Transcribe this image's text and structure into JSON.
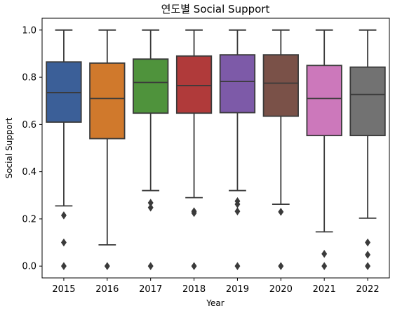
{
  "chart_data": {
    "type": "box",
    "title": "연도별 Social Support",
    "xlabel": "Year",
    "ylabel": "Social Support",
    "ylim": [
      -0.05,
      1.05
    ],
    "yticks": [
      "0.0",
      "0.2",
      "0.4",
      "0.6",
      "0.8",
      "1.0"
    ],
    "categories": [
      "2015",
      "2016",
      "2017",
      "2018",
      "2019",
      "2020",
      "2021",
      "2022"
    ],
    "colors": [
      "#3b5f98",
      "#d0792c",
      "#4f933c",
      "#b03a3a",
      "#7d5aa8",
      "#7a5148",
      "#cc78bb",
      "#727272"
    ],
    "boxes": [
      {
        "year": "2015",
        "whisker_low": 0.255,
        "q1": 0.61,
        "median": 0.735,
        "q3": 0.865,
        "whisker_high": 1.0,
        "outliers": [
          0.215,
          0.1,
          0.0
        ]
      },
      {
        "year": "2016",
        "whisker_low": 0.09,
        "q1": 0.54,
        "median": 0.71,
        "q3": 0.86,
        "whisker_high": 1.0,
        "outliers": [
          0.0
        ]
      },
      {
        "year": "2017",
        "whisker_low": 0.32,
        "q1": 0.648,
        "median": 0.778,
        "q3": 0.877,
        "whisker_high": 1.0,
        "outliers": [
          0.268,
          0.248,
          0.0
        ]
      },
      {
        "year": "2018",
        "whisker_low": 0.29,
        "q1": 0.648,
        "median": 0.765,
        "q3": 0.89,
        "whisker_high": 1.0,
        "outliers": [
          0.232,
          0.225,
          0.0
        ]
      },
      {
        "year": "2019",
        "whisker_low": 0.32,
        "q1": 0.65,
        "median": 0.782,
        "q3": 0.895,
        "whisker_high": 1.0,
        "outliers": [
          0.275,
          0.262,
          0.232,
          0.0
        ]
      },
      {
        "year": "2020",
        "whisker_low": 0.262,
        "q1": 0.635,
        "median": 0.775,
        "q3": 0.895,
        "whisker_high": 1.0,
        "outliers": [
          0.23,
          0.0
        ]
      },
      {
        "year": "2021",
        "whisker_low": 0.145,
        "q1": 0.553,
        "median": 0.71,
        "q3": 0.85,
        "whisker_high": 1.0,
        "outliers": [
          0.052,
          0.0
        ]
      },
      {
        "year": "2022",
        "whisker_low": 0.203,
        "q1": 0.553,
        "median": 0.727,
        "q3": 0.843,
        "whisker_high": 1.0,
        "outliers": [
          0.1,
          0.048,
          0.0
        ]
      }
    ],
    "grid": false,
    "legend": "none"
  }
}
